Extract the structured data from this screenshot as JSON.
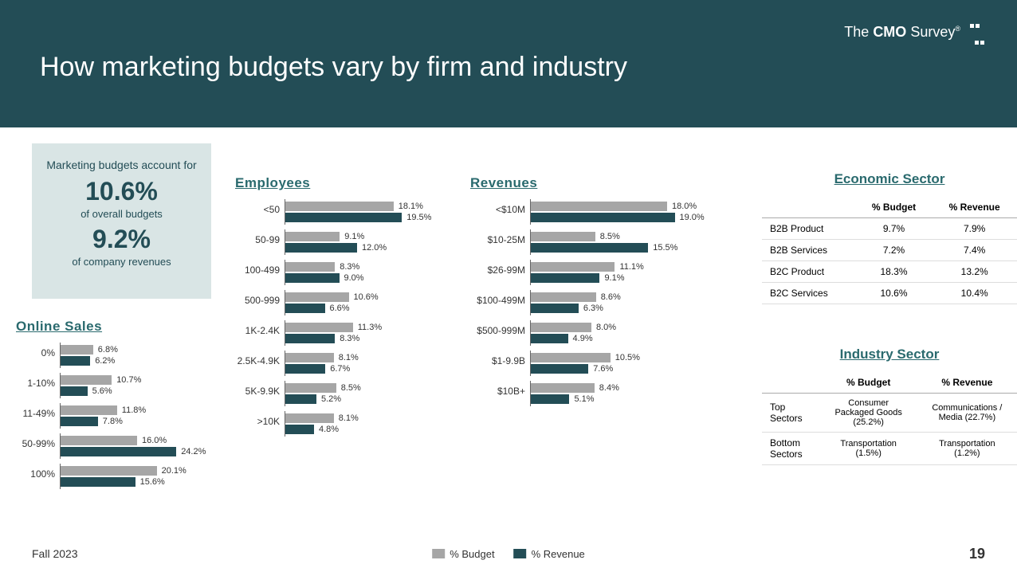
{
  "colors": {
    "budget": "#a6a6a6",
    "revenue": "#234d56",
    "accent": "#2a6a6e",
    "header_bg": "#234d56",
    "callout_bg": "#d9e5e5"
  },
  "logo": {
    "pre": "The ",
    "bold": "CMO",
    "post": " Survey"
  },
  "title": "How marketing budgets vary by firm and industry",
  "callout": {
    "intro": "Marketing budgets account for",
    "pct1": "10.6%",
    "sub1": "of overall budgets",
    "pct2": "9.2%",
    "sub2": "of company revenues"
  },
  "charts": {
    "online_sales": {
      "title": "Online Sales",
      "label_width": 55,
      "bar_scale": 6.0,
      "rows": [
        {
          "label": "0%",
          "budget": 6.8,
          "revenue": 6.2
        },
        {
          "label": "1-10%",
          "budget": 10.7,
          "revenue": 5.6
        },
        {
          "label": "11-49%",
          "budget": 11.8,
          "revenue": 7.8
        },
        {
          "label": "50-99%",
          "budget": 16.0,
          "revenue": 24.2
        },
        {
          "label": "100%",
          "budget": 20.1,
          "revenue": 15.6
        }
      ]
    },
    "employees": {
      "title": "Employees",
      "label_width": 62,
      "bar_scale": 7.5,
      "rows": [
        {
          "label": "<50",
          "budget": 18.1,
          "revenue": 19.5
        },
        {
          "label": "50-99",
          "budget": 9.1,
          "revenue": 12.0
        },
        {
          "label": "100-499",
          "budget": 8.3,
          "revenue": 9.0
        },
        {
          "label": "500-999",
          "budget": 10.6,
          "revenue": 6.6
        },
        {
          "label": "1K-2.4K",
          "budget": 11.3,
          "revenue": 8.3
        },
        {
          "label": "2.5K-4.9K",
          "budget": 8.1,
          "revenue": 6.7
        },
        {
          "label": "5K-9.9K",
          "budget": 8.5,
          "revenue": 5.2
        },
        {
          "label": ">10K",
          "budget": 8.1,
          "revenue": 4.8
        }
      ]
    },
    "revenues": {
      "title": "Revenues",
      "label_width": 75,
      "bar_scale": 9.5,
      "rows": [
        {
          "label": "<$10M",
          "budget": 18.0,
          "revenue": 19.0
        },
        {
          "label": "$10-25M",
          "budget": 8.5,
          "revenue": 15.5
        },
        {
          "label": "$26-99M",
          "budget": 11.1,
          "revenue": 9.1
        },
        {
          "label": "$100-499M",
          "budget": 8.6,
          "revenue": 6.3
        },
        {
          "label": "$500-999M",
          "budget": 8.0,
          "revenue": 4.9
        },
        {
          "label": "$1-9.9B",
          "budget": 10.5,
          "revenue": 7.6
        },
        {
          "label": "$10B+",
          "budget": 8.4,
          "revenue": 5.1
        }
      ]
    }
  },
  "economic_sector": {
    "title": "Economic Sector",
    "headers": [
      "",
      "% Budget",
      "% Revenue"
    ],
    "rows": [
      [
        "B2B Product",
        "9.7%",
        "7.9%"
      ],
      [
        "B2B Services",
        "7.2%",
        "7.4%"
      ],
      [
        "B2C Product",
        "18.3%",
        "13.2%"
      ],
      [
        "B2C Services",
        "10.6%",
        "10.4%"
      ]
    ]
  },
  "industry_sector": {
    "title": "Industry Sector",
    "headers": [
      "",
      "% Budget",
      "% Revenue"
    ],
    "rows": [
      [
        "Top Sectors",
        "Consumer Packaged Goods (25.2%)",
        "Communications / Media (22.7%)"
      ],
      [
        "Bottom Sectors",
        "Transportation (1.5%)",
        "Transportation (1.2%)"
      ]
    ]
  },
  "legend": {
    "budget": "% Budget",
    "revenue": "% Revenue"
  },
  "footer_date": "Fall 2023",
  "page_number": "19"
}
